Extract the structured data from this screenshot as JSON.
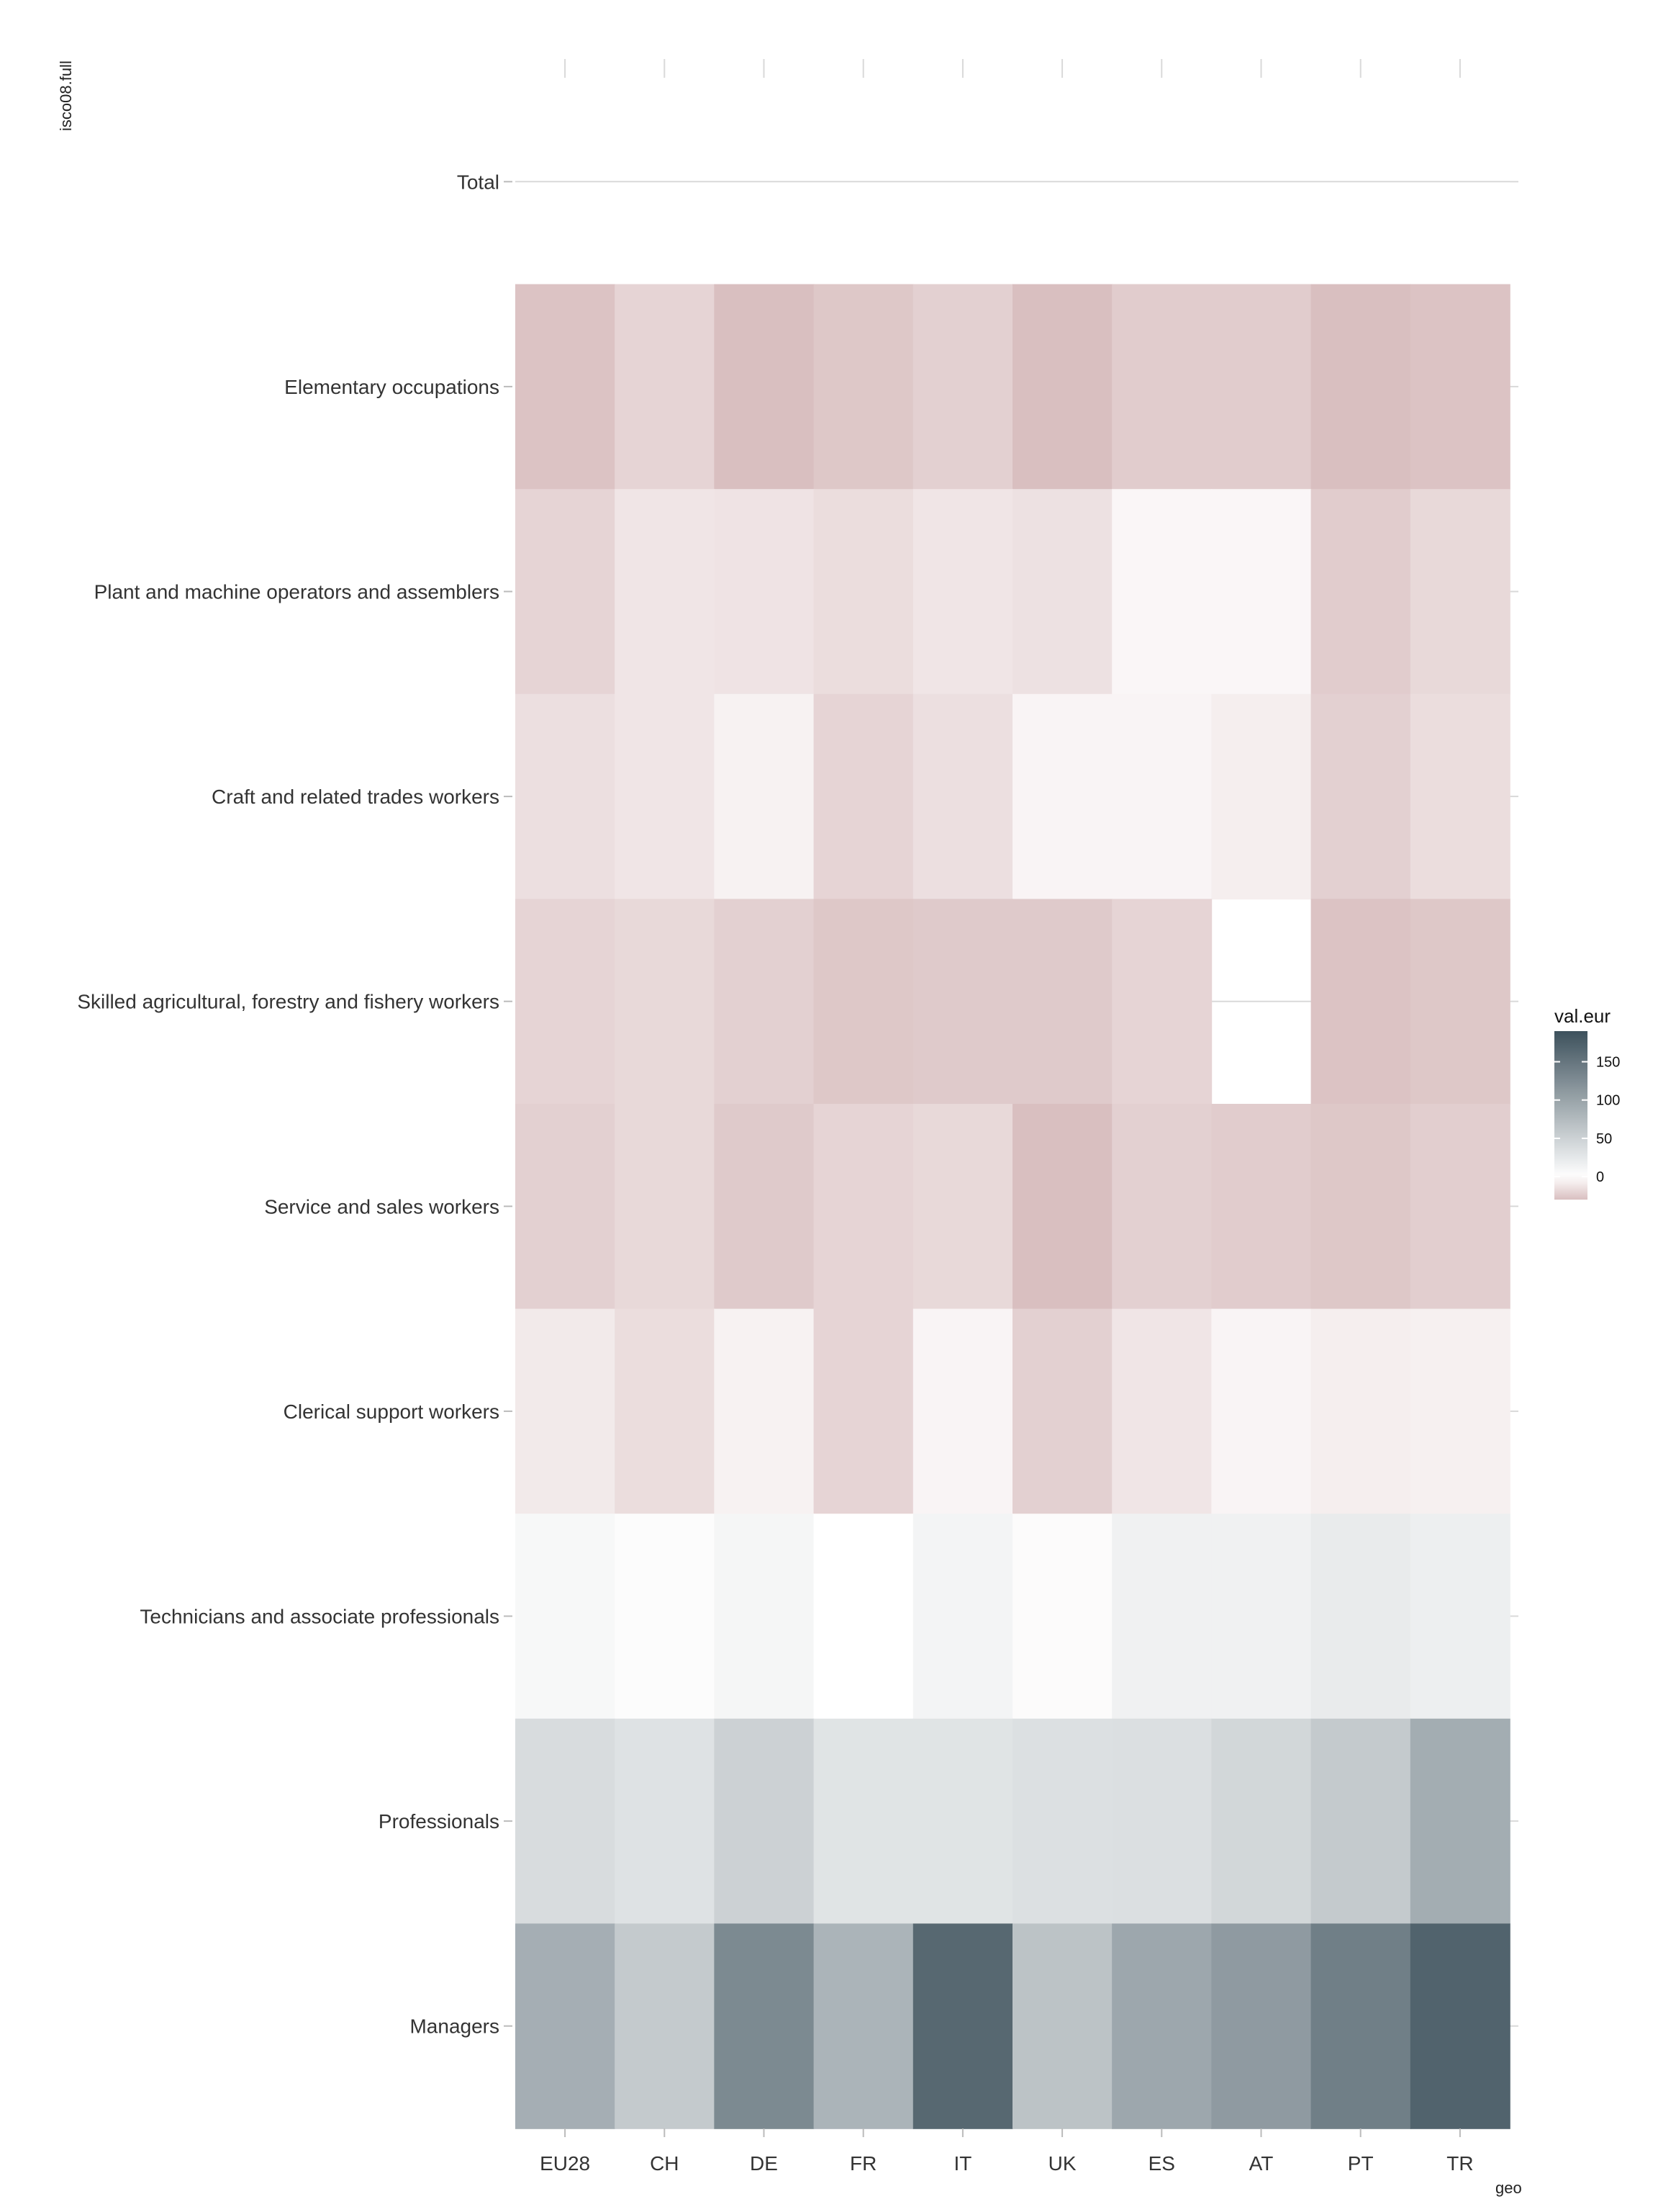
{
  "chart_data": {
    "type": "heatmap",
    "xlabel": "geo",
    "ylabel": "isco08.full",
    "x_categories": [
      "EU28",
      "CH",
      "DE",
      "FR",
      "IT",
      "UK",
      "ES",
      "AT",
      "PT",
      "TR"
    ],
    "y_categories": [
      "Total",
      "Elementary occupations",
      "Plant and machine operators and assemblers",
      "Craft and related trades workers",
      "Skilled agricultural, forestry and fishery workers",
      "Service and sales workers",
      "Clerical support workers",
      "Technicians and associate professionals",
      "Professionals",
      "Managers"
    ],
    "values": [
      [
        null,
        null,
        null,
        null,
        null,
        null,
        null,
        null,
        null,
        null
      ],
      [
        -28,
        -20,
        -32,
        -26,
        -22,
        -30,
        -24,
        -24,
        -34,
        -28
      ],
      [
        -20,
        -12,
        -13,
        -16,
        -12,
        -14,
        -4,
        -4,
        -24,
        -18
      ],
      [
        -15,
        -12,
        -6,
        -20,
        -15,
        -5,
        -5,
        -8,
        -22,
        -16
      ],
      [
        -20,
        -18,
        -22,
        -26,
        -25,
        -25,
        -20,
        null,
        -28,
        -26
      ],
      [
        -22,
        -18,
        -25,
        -20,
        -18,
        -30,
        -22,
        -24,
        -26,
        -23
      ],
      [
        -10,
        -16,
        -6,
        -20,
        -5,
        -22,
        -12,
        -5,
        -8,
        -7
      ],
      [
        8,
        3,
        10,
        0,
        12,
        -2,
        15,
        15,
        22,
        18
      ],
      [
        38,
        32,
        50,
        30,
        30,
        34,
        35,
        44,
        58,
        90
      ],
      [
        88,
        58,
        128,
        82,
        165,
        66,
        96,
        110,
        140,
        170
      ]
    ],
    "legend": {
      "title": "val.eur",
      "ticks": [
        150,
        100,
        50,
        0
      ],
      "range": [
        -30,
        190
      ],
      "placement": "right"
    },
    "colors": {
      "low": "#d9bfc0",
      "mid": "#ffffff",
      "high": "#3d515c",
      "grid": "#d9d9d9",
      "panel_bg": "#ffffff"
    },
    "grid": true
  }
}
